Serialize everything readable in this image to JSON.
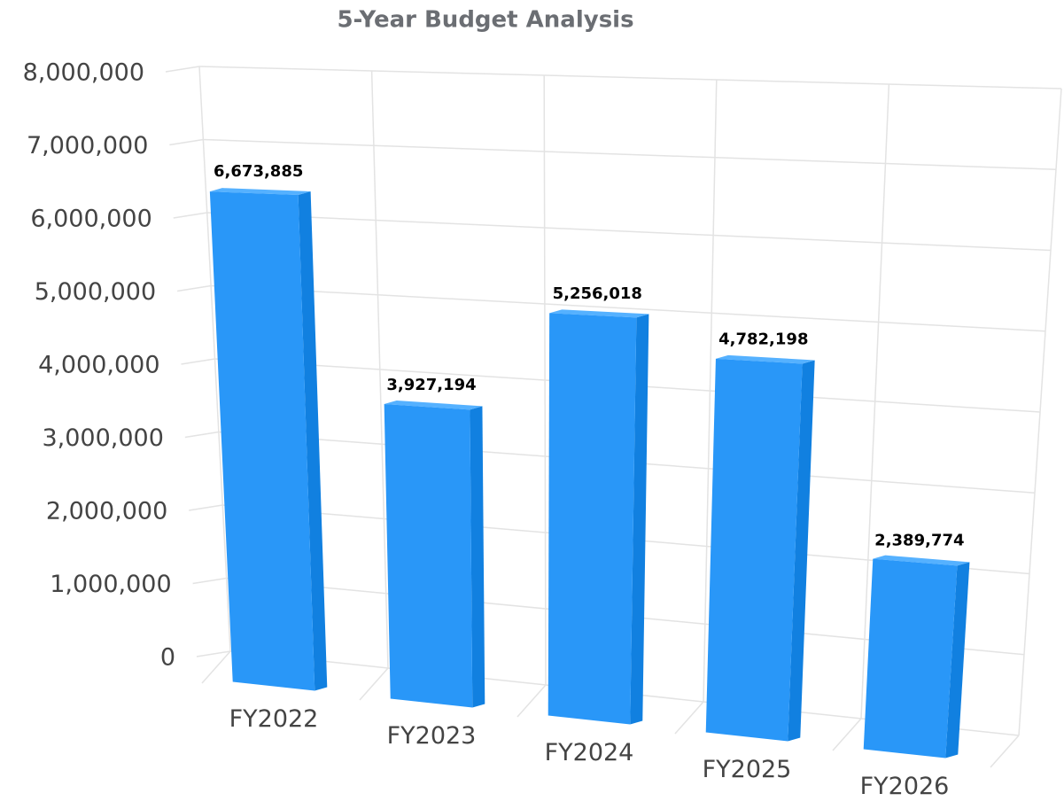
{
  "chart_data": {
    "type": "bar",
    "title": "5-Year Budget Analysis",
    "categories": [
      "FY2022",
      "FY2023",
      "FY2024",
      "FY2025",
      "FY2026"
    ],
    "values": [
      6673885,
      3927194,
      5256018,
      4782198,
      2389774
    ],
    "value_labels": [
      "6,673,885",
      "3,927,194",
      "5,256,018",
      "4,782,198",
      "2,389,774"
    ],
    "color": "#2997f8",
    "ylim": [
      0,
      8000000
    ],
    "yticks": [
      0,
      {
        "value": 1000000,
        "label": "1,000,000"
      },
      {
        "value": 2000000,
        "label": "2,000,000"
      },
      {
        "value": 3000000,
        "label": "3,000,000"
      },
      {
        "value": 4000000,
        "label": "4,000,000"
      },
      {
        "value": 5000000,
        "label": "5,000,000"
      },
      {
        "value": 6000000,
        "label": "6,000,000"
      },
      {
        "value": 7000000,
        "label": "7,000,000"
      },
      {
        "value": 8000000,
        "label": "8,000,000"
      }
    ],
    "grid": true
  }
}
